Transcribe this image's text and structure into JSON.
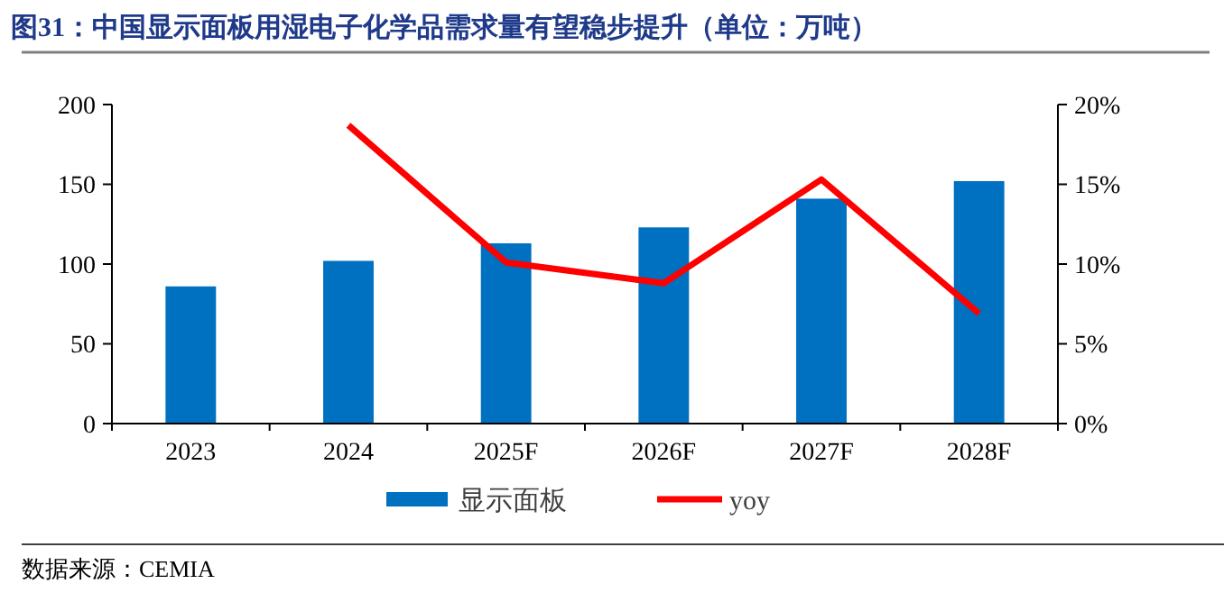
{
  "chart_data": {
    "type": "bar",
    "title": "图31：中国显示面板用湿电子化学品需求量有望稳步提升（单位：万吨）",
    "categories": [
      "2023",
      "2024",
      "2025F",
      "2026F",
      "2027F",
      "2028F"
    ],
    "series": [
      {
        "name": "显示面板",
        "color": "#0070c0",
        "values": [
          86,
          102,
          113,
          123,
          141,
          152
        ]
      },
      {
        "name": "yoy",
        "type": "line",
        "axis": "y2",
        "color": "#ff0000",
        "values": [
          null,
          18.7,
          10.1,
          8.8,
          15.3,
          6.9
        ]
      }
    ],
    "ylim": [
      0,
      200
    ],
    "yticks": [
      0,
      50,
      100,
      150,
      200
    ],
    "y2lim": [
      0,
      20
    ],
    "y2ticks": [
      {
        "value": 0,
        "label": "0%"
      },
      {
        "value": 5,
        "label": "5%"
      },
      {
        "value": 10,
        "label": "10%"
      },
      {
        "value": 15,
        "label": "15%"
      },
      {
        "value": 20,
        "label": "20%"
      }
    ],
    "grid": false,
    "legend": "bottom",
    "marker": "none",
    "annotations": [
      "数据来源：CEMIA"
    ]
  }
}
